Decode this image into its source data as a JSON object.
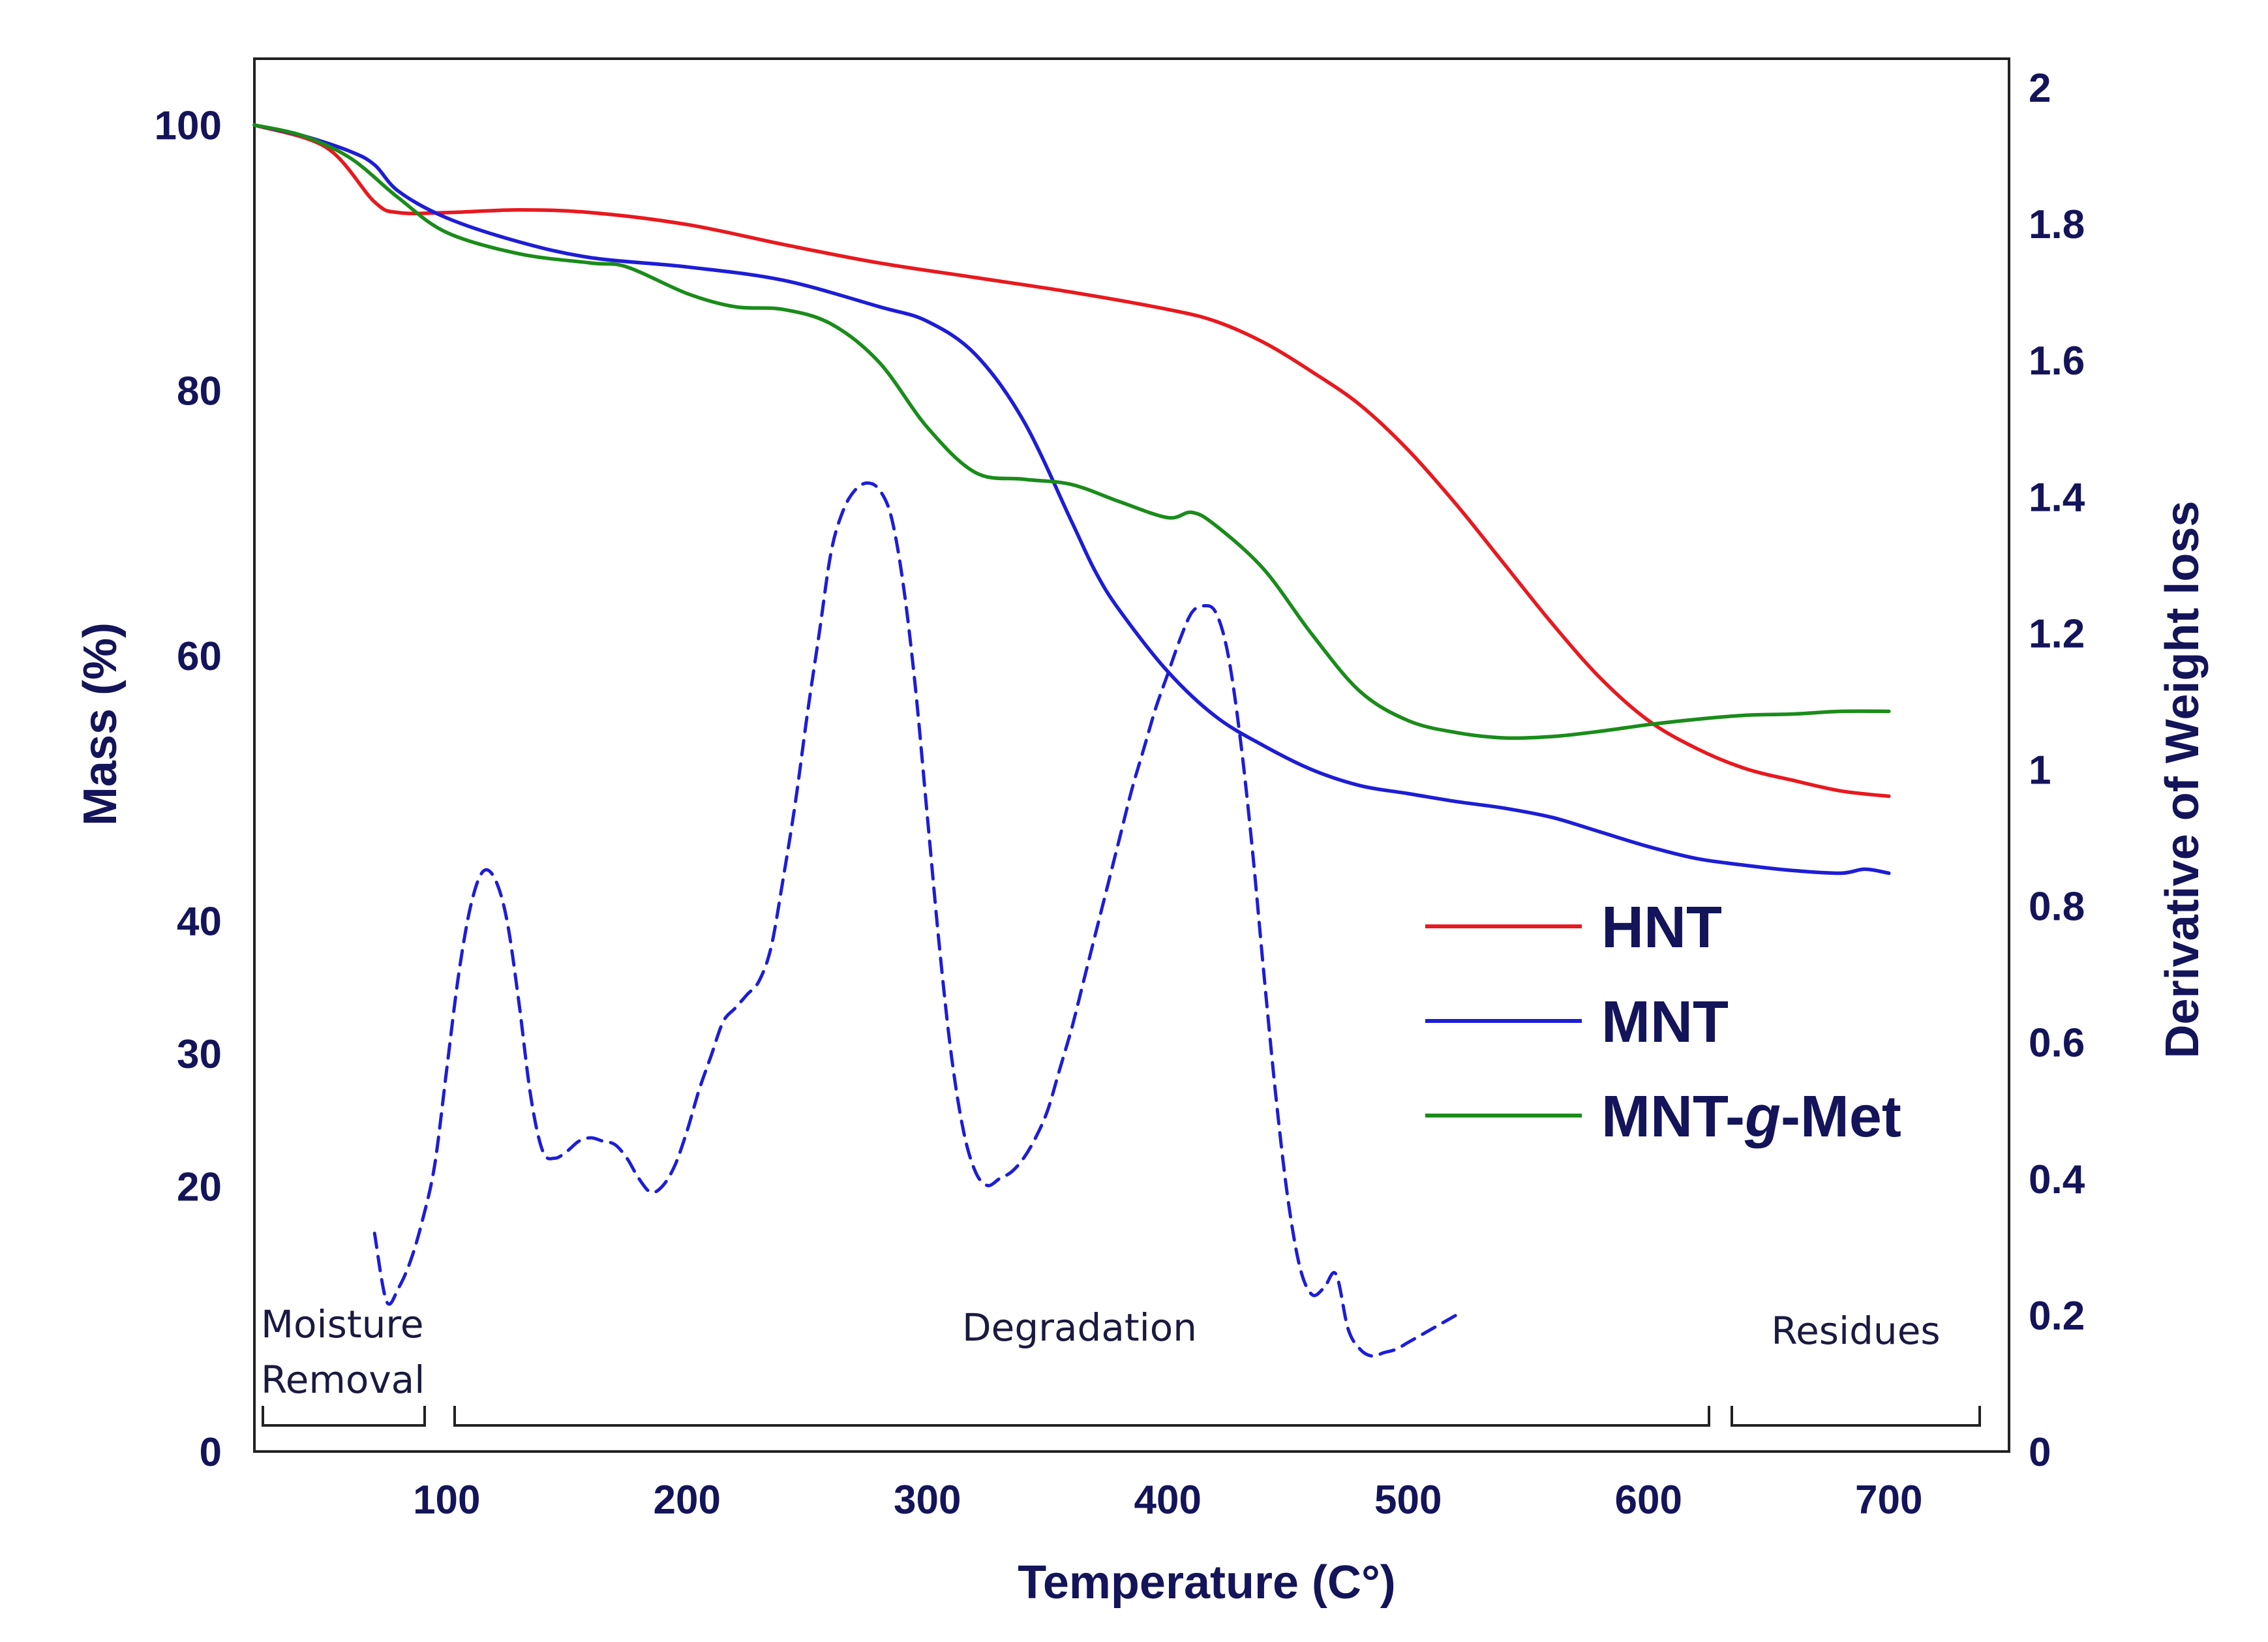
{
  "chart_data": {
    "type": "line",
    "xlabel": "Temperature (C°)",
    "ylabel_left": "Mass (%)",
    "ylabel_right": "Derivative of Weight loss",
    "xlim": [
      20,
      750
    ],
    "ylim_left": [
      0,
      105
    ],
    "ylim_right": [
      0,
      2.0421
    ],
    "x_ticks": [
      100,
      200,
      300,
      400,
      500,
      600,
      700
    ],
    "y_left_ticks": [
      0,
      20,
      30,
      40,
      60,
      80,
      100
    ],
    "y_right_ticks": [
      0,
      0.2,
      0.4,
      0.6,
      0.8,
      1,
      1.2,
      1.4,
      1.6,
      1.8,
      2
    ],
    "grid": false,
    "legend_position": "center-right",
    "series": [
      {
        "name": "HNT",
        "color": "#e8191f",
        "axis": "left",
        "style": "solid",
        "x": [
          20,
          50,
          70,
          80,
          100,
          130,
          160,
          200,
          240,
          280,
          320,
          360,
          400,
          420,
          440,
          460,
          480,
          500,
          520,
          540,
          560,
          580,
          600,
          620,
          640,
          660,
          680,
          700
        ],
        "y": [
          100,
          98.3,
          94.2,
          93.4,
          93.4,
          93.6,
          93.4,
          92.5,
          91.0,
          89.6,
          88.5,
          87.4,
          86.1,
          85.2,
          83.6,
          81.4,
          78.9,
          75.5,
          71.4,
          66.9,
          62.4,
          58.3,
          55.1,
          53.0,
          51.5,
          50.6,
          49.8,
          49.4
        ]
      },
      {
        "name": "MNT",
        "color": "#1d1dd6",
        "axis": "left",
        "style": "solid",
        "x": [
          20,
          40,
          60,
          70,
          80,
          100,
          130,
          160,
          200,
          240,
          280,
          300,
          320,
          340,
          360,
          370,
          380,
          400,
          420,
          440,
          460,
          480,
          500,
          520,
          540,
          560,
          580,
          600,
          620,
          640,
          660,
          680,
          690,
          700
        ],
        "y": [
          100,
          99.2,
          98,
          97,
          95,
          93,
          91.2,
          90,
          89.3,
          88.3,
          86.3,
          85.2,
          82.7,
          77.7,
          70.1,
          66.3,
          63.4,
          58.8,
          55.4,
          53.2,
          51.4,
          50.2,
          49.6,
          49.0,
          48.5,
          47.8,
          46.7,
          45.6,
          44.7,
          44.2,
          43.8,
          43.6,
          43.9,
          43.6
        ]
      },
      {
        "name": "MNT-g-Met",
        "color": "#1a8c1a",
        "axis": "left",
        "style": "solid",
        "x": [
          20,
          40,
          60,
          80,
          100,
          130,
          160,
          175,
          200,
          220,
          240,
          260,
          280,
          300,
          320,
          340,
          360,
          380,
          400,
          410,
          420,
          440,
          460,
          480,
          500,
          520,
          540,
          560,
          580,
          600,
          620,
          640,
          660,
          680,
          700
        ],
        "y": [
          100,
          99.2,
          97.5,
          94.5,
          91.9,
          90.3,
          89.6,
          89.3,
          87.3,
          86.3,
          86.1,
          85.0,
          82.1,
          77.2,
          73.8,
          73.3,
          72.9,
          71.6,
          70.4,
          70.8,
          69.8,
          66.5,
          61.6,
          57.3,
          55.1,
          54.2,
          53.8,
          53.9,
          54.3,
          54.8,
          55.2,
          55.5,
          55.6,
          55.8,
          55.8
        ]
      },
      {
        "name": "",
        "color": "#1d1dd6",
        "axis": "right",
        "style": "dashed",
        "x": [
          70,
          75,
          80,
          85,
          90,
          95,
          100,
          105,
          110,
          115,
          120,
          125,
          130,
          135,
          140,
          145,
          150,
          155,
          160,
          165,
          170,
          175,
          180,
          185,
          190,
          195,
          200,
          205,
          210,
          215,
          220,
          225,
          230,
          235,
          240,
          245,
          250,
          255,
          260,
          265,
          270,
          275,
          280,
          285,
          290,
          295,
          300,
          305,
          310,
          315,
          320,
          325,
          330,
          335,
          340,
          345,
          350,
          355,
          360,
          365,
          370,
          375,
          380,
          385,
          390,
          395,
          400,
          405,
          410,
          415,
          420,
          425,
          430,
          435,
          440,
          445,
          450,
          455,
          460,
          465,
          470,
          475,
          480,
          485,
          490,
          495,
          500,
          505,
          510,
          515,
          520
        ],
        "y": [
          0.32,
          0.22,
          0.24,
          0.28,
          0.34,
          0.42,
          0.56,
          0.7,
          0.8,
          0.85,
          0.84,
          0.78,
          0.66,
          0.52,
          0.44,
          0.43,
          0.44,
          0.455,
          0.46,
          0.455,
          0.45,
          0.43,
          0.4,
          0.38,
          0.39,
          0.42,
          0.47,
          0.53,
          0.58,
          0.63,
          0.65,
          0.67,
          0.69,
          0.74,
          0.84,
          0.95,
          1.08,
          1.2,
          1.32,
          1.38,
          1.41,
          1.42,
          1.41,
          1.37,
          1.27,
          1.12,
          0.93,
          0.74,
          0.58,
          0.47,
          0.41,
          0.39,
          0.4,
          0.41,
          0.43,
          0.46,
          0.5,
          0.56,
          0.62,
          0.69,
          0.76,
          0.83,
          0.9,
          0.97,
          1.03,
          1.09,
          1.14,
          1.19,
          1.23,
          1.24,
          1.23,
          1.17,
          1.05,
          0.89,
          0.7,
          0.52,
          0.37,
          0.27,
          0.23,
          0.24,
          0.26,
          0.18,
          0.15,
          0.14,
          0.145,
          0.15,
          0.16,
          0.17,
          0.18,
          0.19,
          0.2
        ]
      }
    ],
    "annotations": {
      "moisture_line1": "Moisture",
      "moisture_line2": "Removal",
      "degradation": "Degradation",
      "residues": "Residues"
    }
  }
}
